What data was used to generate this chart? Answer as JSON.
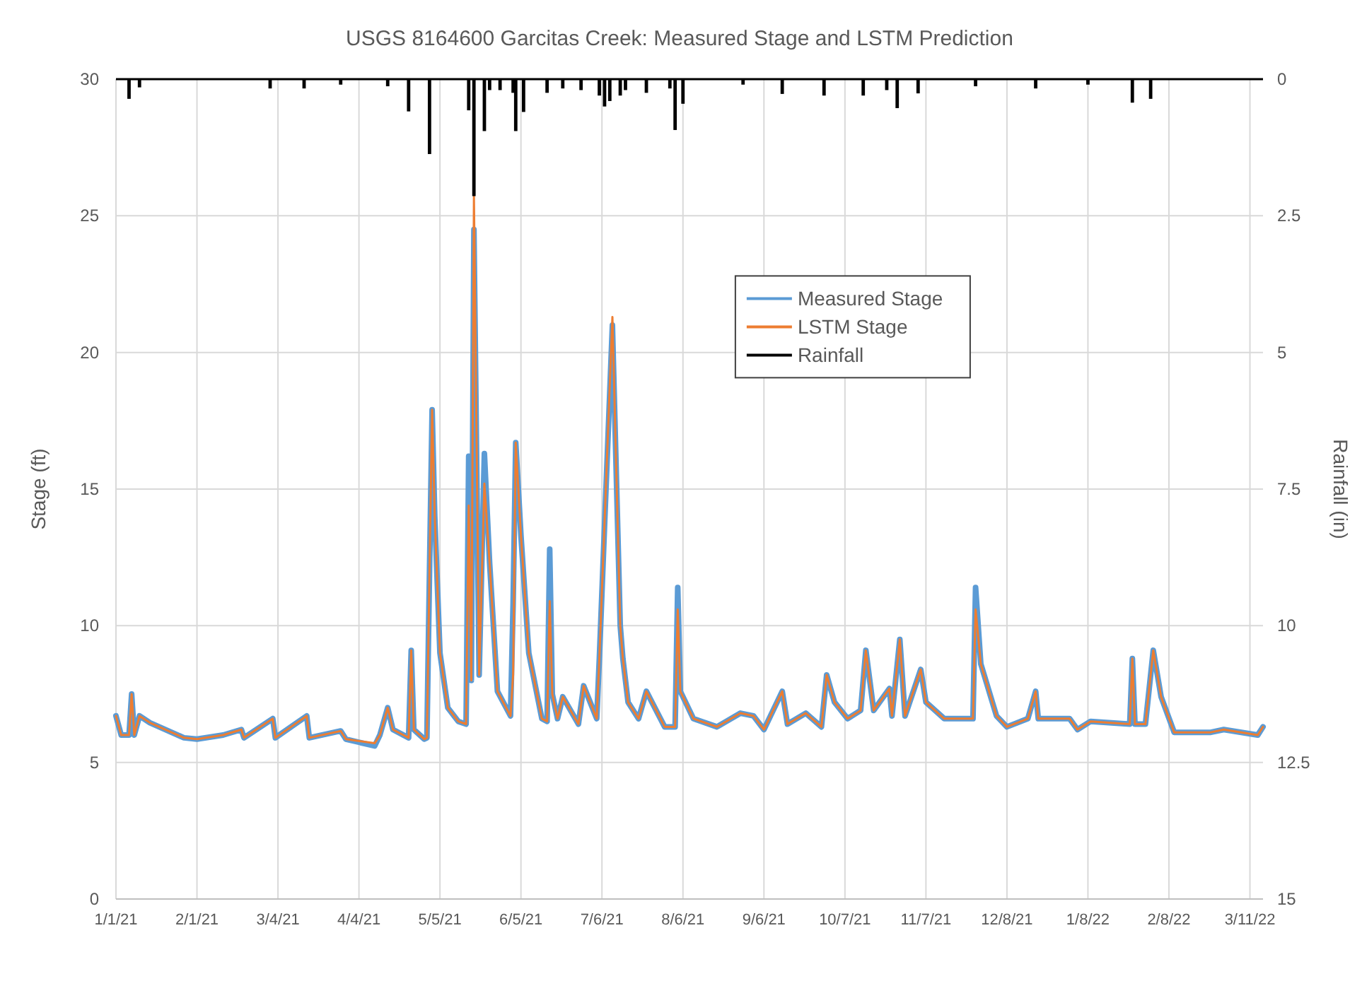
{
  "chart_data": {
    "type": "line",
    "title": "USGS 8164600 Garcitas Creek:  Measured Stage and LSTM Prediction",
    "ylabel": "Stage (ft)",
    "y2label": "Rainfall (in)",
    "xlim": [
      "2021-01-01",
      "2022-03-16"
    ],
    "xticks": [
      {
        "value": "2021-01-01",
        "label": "1/1/21"
      },
      {
        "value": "2021-02-01",
        "label": "2/1/21"
      },
      {
        "value": "2021-03-04",
        "label": "3/4/21"
      },
      {
        "value": "2021-04-04",
        "label": "4/4/21"
      },
      {
        "value": "2021-05-05",
        "label": "5/5/21"
      },
      {
        "value": "2021-06-05",
        "label": "6/5/21"
      },
      {
        "value": "2021-07-06",
        "label": "7/6/21"
      },
      {
        "value": "2021-08-06",
        "label": "8/6/21"
      },
      {
        "value": "2021-09-06",
        "label": "9/6/21"
      },
      {
        "value": "2021-10-07",
        "label": "10/7/21"
      },
      {
        "value": "2021-11-07",
        "label": "11/7/21"
      },
      {
        "value": "2021-12-08",
        "label": "12/8/21"
      },
      {
        "value": "2022-01-08",
        "label": "1/8/22"
      },
      {
        "value": "2022-02-08",
        "label": "2/8/22"
      },
      {
        "value": "2022-03-11",
        "label": "3/11/22"
      }
    ],
    "ylim": [
      0,
      30
    ],
    "yticks": [
      0,
      5,
      10,
      15,
      20,
      25,
      30
    ],
    "y2lim": [
      15,
      0
    ],
    "y2ticks": [
      0,
      2.5,
      5,
      7.5,
      10,
      12.5,
      15
    ],
    "grid": true,
    "legend": "top",
    "x": [
      "2021-01-01",
      "2021-01-03",
      "2021-01-06",
      "2021-01-07",
      "2021-01-08",
      "2021-01-10",
      "2021-01-14",
      "2021-01-27",
      "2021-02-01",
      "2021-02-11",
      "2021-02-18",
      "2021-02-19",
      "2021-03-02",
      "2021-03-03",
      "2021-03-15",
      "2021-03-16",
      "2021-03-28",
      "2021-03-30",
      "2021-04-10",
      "2021-04-12",
      "2021-04-15",
      "2021-04-17",
      "2021-04-23",
      "2021-04-24",
      "2021-04-25",
      "2021-04-29",
      "2021-04-30",
      "2021-05-01",
      "2021-05-02",
      "2021-05-03",
      "2021-05-05",
      "2021-05-08",
      "2021-05-12",
      "2021-05-15",
      "2021-05-16",
      "2021-05-17",
      "2021-05-18",
      "2021-05-20",
      "2021-05-22",
      "2021-05-24",
      "2021-05-27",
      "2021-06-01",
      "2021-06-02",
      "2021-06-03",
      "2021-06-05",
      "2021-06-08",
      "2021-06-13",
      "2021-06-15",
      "2021-06-16",
      "2021-06-17",
      "2021-06-19",
      "2021-06-21",
      "2021-06-27",
      "2021-06-29",
      "2021-07-04",
      "2021-07-05",
      "2021-07-10",
      "2021-07-13",
      "2021-07-14",
      "2021-07-16",
      "2021-07-20",
      "2021-07-23",
      "2021-07-30",
      "2021-08-03",
      "2021-08-04",
      "2021-08-05",
      "2021-08-10",
      "2021-08-19",
      "2021-08-28",
      "2021-09-02",
      "2021-09-06",
      "2021-09-13",
      "2021-09-15",
      "2021-09-22",
      "2021-09-28",
      "2021-09-30",
      "2021-10-03",
      "2021-10-08",
      "2021-10-13",
      "2021-10-15",
      "2021-10-18",
      "2021-10-24",
      "2021-10-25",
      "2021-10-28",
      "2021-10-30",
      "2021-11-05",
      "2021-11-07",
      "2021-11-14",
      "2021-11-25",
      "2021-11-26",
      "2021-11-28",
      "2021-12-04",
      "2021-12-08",
      "2021-12-16",
      "2021-12-19",
      "2021-12-20",
      "2022-01-01",
      "2022-01-04",
      "2022-01-09",
      "2022-01-24",
      "2022-01-25",
      "2022-01-26",
      "2022-01-30",
      "2022-02-02",
      "2022-02-05",
      "2022-02-10",
      "2022-02-24",
      "2022-03-01",
      "2022-03-14",
      "2022-03-16"
    ],
    "series": [
      {
        "name": "Measured Stage",
        "color": "#5b9bd5",
        "values": [
          6.7,
          6.0,
          6.0,
          7.5,
          6.0,
          6.7,
          6.45,
          5.9,
          5.85,
          6.0,
          6.2,
          5.9,
          6.6,
          5.9,
          6.7,
          5.9,
          6.15,
          5.85,
          5.6,
          6.0,
          7.0,
          6.2,
          5.9,
          9.1,
          6.2,
          5.85,
          5.9,
          12,
          17.9,
          14,
          9,
          7.0,
          6.5,
          6.4,
          16.2,
          8.0,
          24.5,
          8.2,
          16.3,
          12.3,
          7.6,
          6.7,
          10.8,
          16.7,
          13.3,
          9.0,
          6.6,
          6.5,
          12.8,
          7.5,
          6.6,
          7.4,
          6.4,
          7.8,
          6.6,
          8.8,
          21.0,
          10.0,
          8.8,
          7.2,
          6.6,
          7.6,
          6.3,
          6.3,
          11.4,
          7.6,
          6.6,
          6.3,
          6.8,
          6.7,
          6.2,
          7.6,
          6.4,
          6.8,
          6.3,
          8.2,
          7.2,
          6.6,
          6.9,
          9.1,
          6.9,
          7.7,
          6.7,
          9.5,
          6.7,
          8.4,
          7.2,
          6.6,
          6.6,
          11.4,
          8.6,
          6.7,
          6.3,
          6.6,
          7.6,
          6.6,
          6.6,
          6.2,
          6.5,
          6.4,
          8.8,
          6.4,
          6.4,
          9.1,
          7.4,
          6.1,
          6.1,
          6.2,
          6.0,
          6.3
        ]
      },
      {
        "name": "LSTM Stage",
        "color": "#ed7d31",
        "values": [
          6.7,
          6.0,
          6.0,
          7.5,
          6.0,
          6.7,
          6.45,
          5.9,
          5.85,
          6.0,
          6.2,
          5.9,
          6.6,
          5.9,
          6.7,
          5.9,
          6.15,
          5.85,
          5.7,
          6.0,
          7.0,
          6.2,
          5.9,
          9.1,
          6.2,
          5.85,
          5.9,
          12,
          17.9,
          14,
          9,
          7.0,
          6.5,
          6.4,
          14.4,
          8.0,
          25.7,
          8.2,
          15.2,
          12.3,
          7.6,
          6.7,
          8.2,
          16.7,
          13.3,
          9.0,
          6.6,
          6.5,
          10.9,
          7.5,
          6.6,
          7.4,
          6.4,
          7.8,
          6.6,
          8.8,
          21.3,
          10.0,
          8.8,
          7.2,
          6.6,
          7.6,
          6.3,
          6.3,
          10.6,
          7.6,
          6.6,
          6.3,
          6.8,
          6.7,
          6.2,
          7.6,
          6.4,
          6.8,
          6.3,
          8.2,
          7.2,
          6.6,
          6.9,
          9.1,
          6.9,
          7.7,
          6.7,
          9.5,
          6.7,
          8.4,
          7.2,
          6.6,
          6.6,
          10.6,
          8.6,
          6.7,
          6.3,
          6.6,
          7.6,
          6.6,
          6.6,
          6.2,
          6.5,
          6.4,
          8.8,
          6.4,
          6.4,
          9.1,
          7.4,
          6.1,
          6.1,
          6.2,
          6.0,
          6.3
        ]
      },
      {
        "name": "Rainfall",
        "type": "bar",
        "axis": "y2",
        "color": "#000000",
        "x": [
          "2021-01-06",
          "2021-01-10",
          "2021-03-01",
          "2021-03-14",
          "2021-03-28",
          "2021-04-15",
          "2021-04-23",
          "2021-05-01",
          "2021-05-16",
          "2021-05-18",
          "2021-05-22",
          "2021-05-24",
          "2021-05-28",
          "2021-06-02",
          "2021-06-03",
          "2021-06-06",
          "2021-06-15",
          "2021-06-21",
          "2021-06-28",
          "2021-07-05",
          "2021-07-07",
          "2021-07-09",
          "2021-07-13",
          "2021-07-15",
          "2021-07-23",
          "2021-08-01",
          "2021-08-03",
          "2021-08-06",
          "2021-08-29",
          "2021-09-13",
          "2021-09-29",
          "2021-10-14",
          "2021-10-23",
          "2021-10-27",
          "2021-11-04",
          "2021-11-26",
          "2021-12-19",
          "2022-01-08",
          "2022-01-25",
          "2022-02-01"
        ],
        "values": [
          0.36,
          0.15,
          0.17,
          0.17,
          0.1,
          0.13,
          0.59,
          1.37,
          0.57,
          2.14,
          0.95,
          0.2,
          0.2,
          0.25,
          0.95,
          0.6,
          0.25,
          0.17,
          0.2,
          0.3,
          0.5,
          0.4,
          0.3,
          0.2,
          0.25,
          0.17,
          0.93,
          0.45,
          0.1,
          0.27,
          0.3,
          0.3,
          0.2,
          0.53,
          0.26,
          0.13,
          0.17,
          0.1,
          0.43,
          0.36
        ]
      }
    ]
  }
}
